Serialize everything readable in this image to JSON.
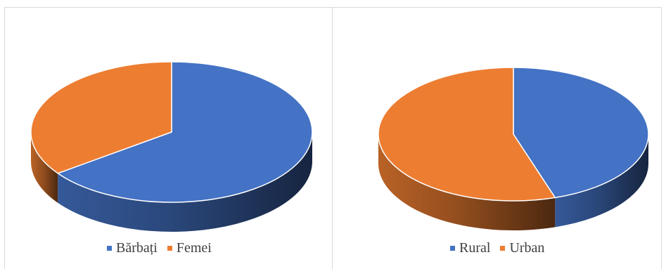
{
  "chart_data": [
    {
      "type": "pie",
      "style": "3d",
      "title": "",
      "categories": [
        "Bărbați",
        "Femei"
      ],
      "values": [
        65,
        35
      ],
      "colors": [
        "#4472c4",
        "#ed7d31"
      ],
      "legend": "bottom"
    },
    {
      "type": "pie",
      "style": "3d",
      "title": "",
      "categories": [
        "Rural",
        "Urban"
      ],
      "values": [
        45,
        55
      ],
      "colors": [
        "#4472c4",
        "#ed7d31"
      ],
      "legend": "bottom"
    }
  ]
}
